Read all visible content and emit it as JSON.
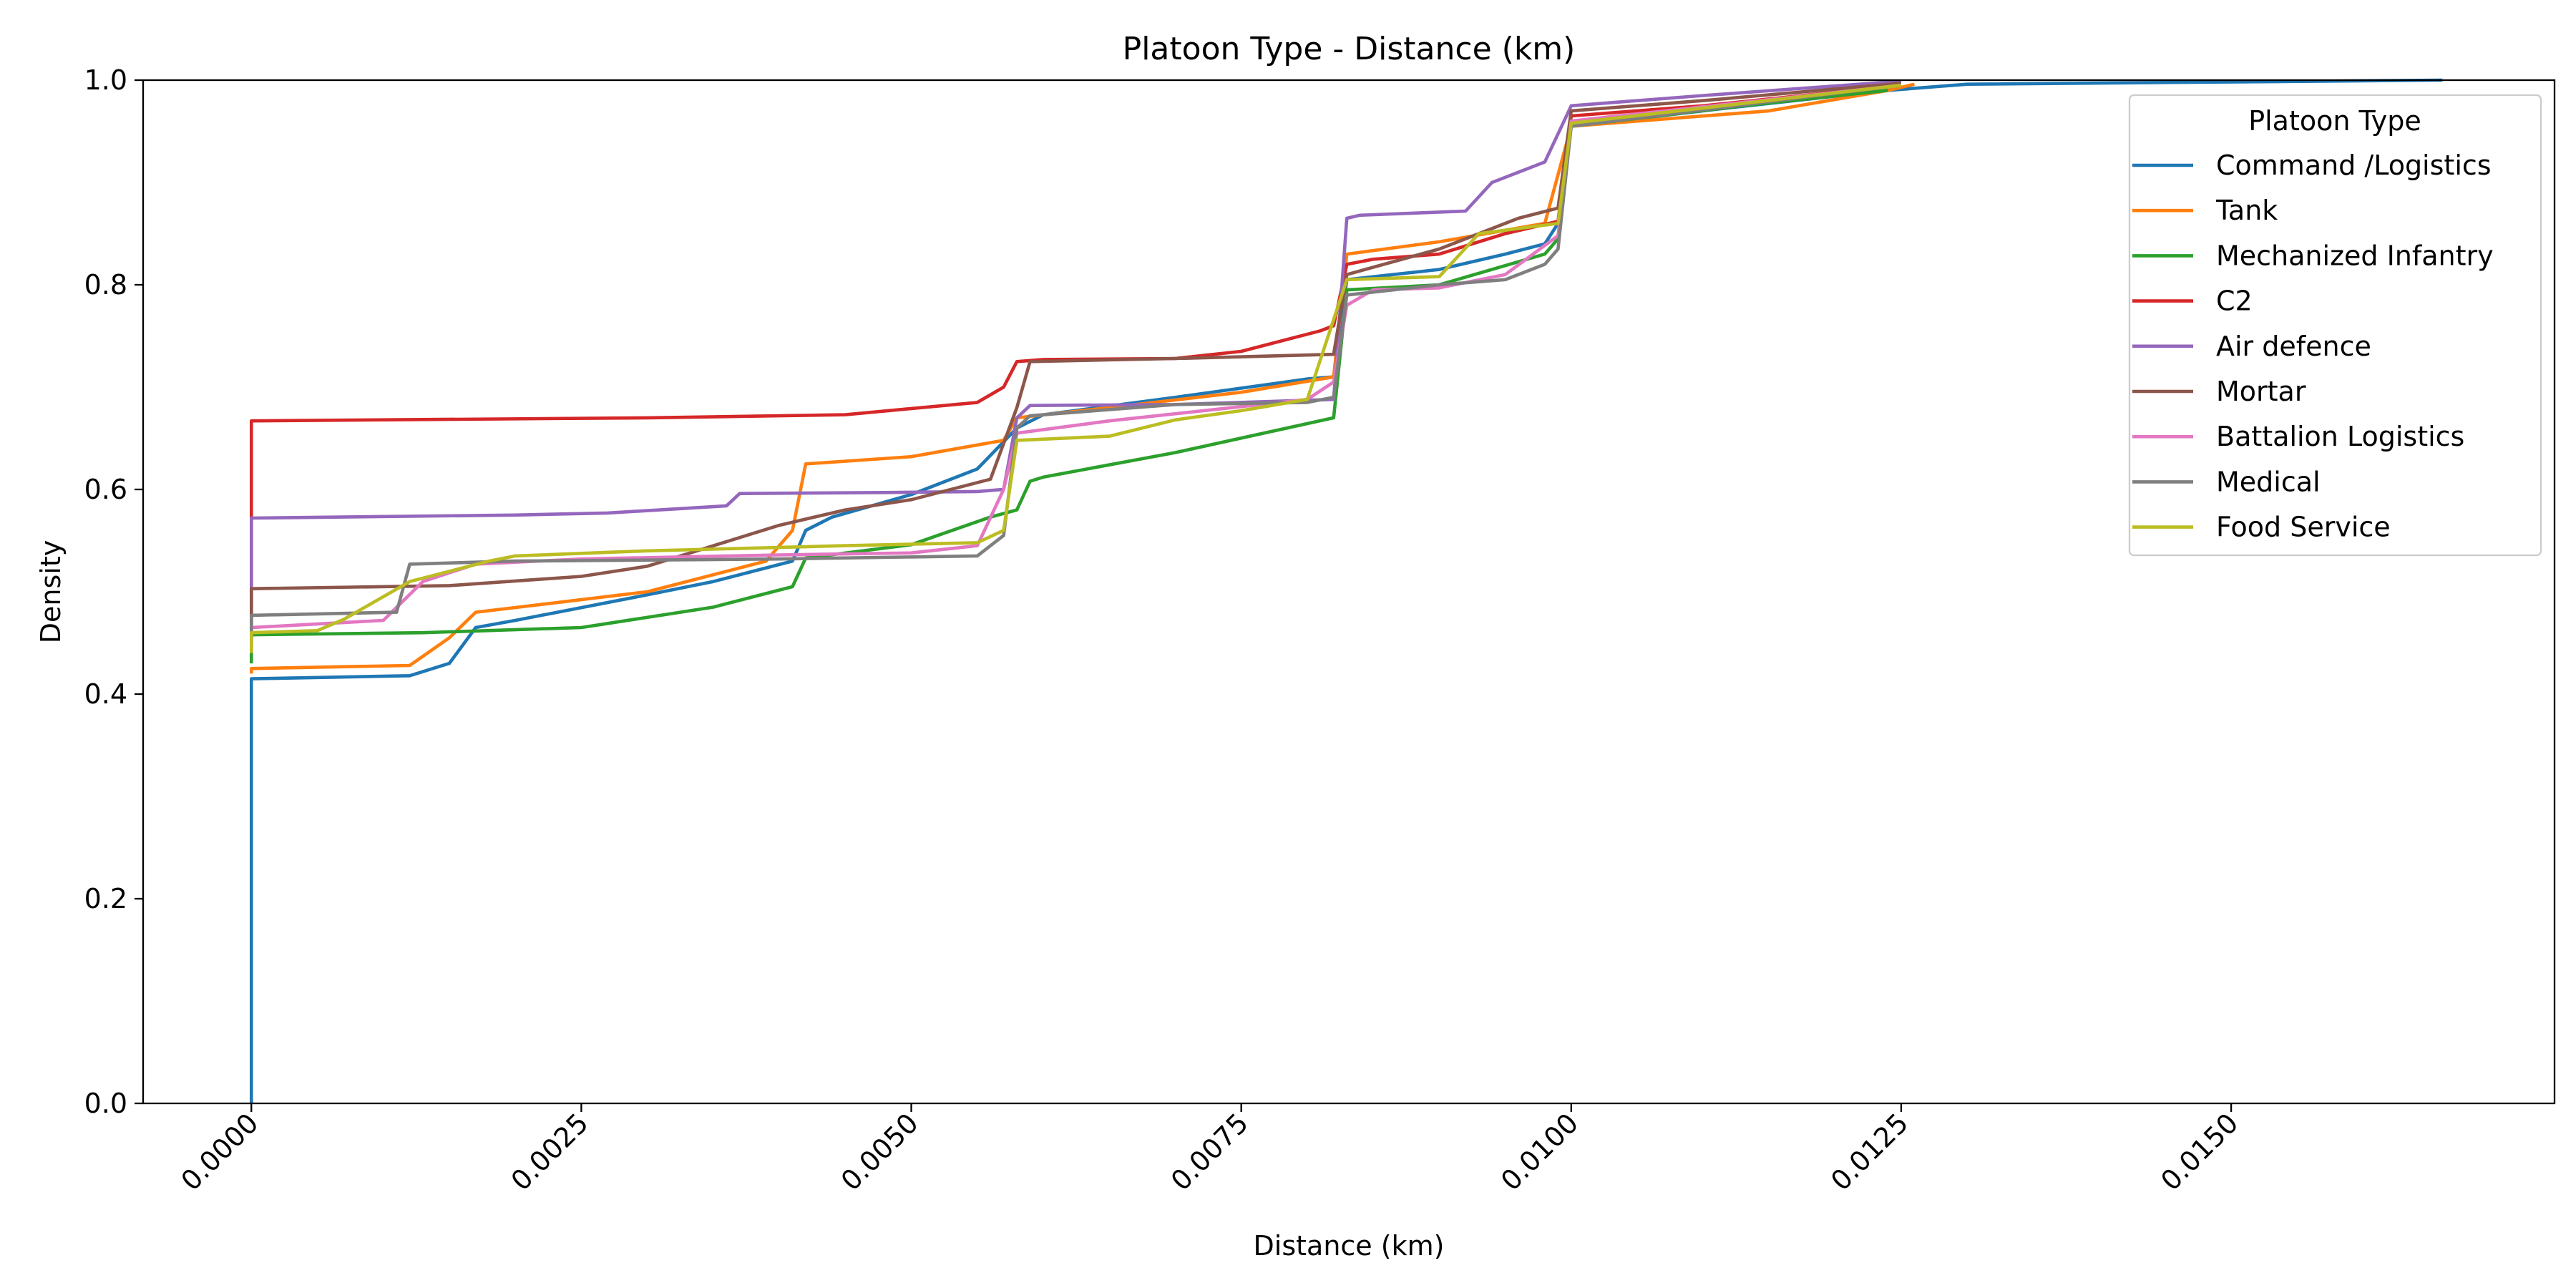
{
  "chart_data": {
    "type": "line",
    "title": "Platoon Type - Distance (km)",
    "xlabel": "Distance (km)",
    "ylabel": "Density",
    "xlim": [
      -0.00082,
      0.01745
    ],
    "ylim": [
      0.0,
      1.0
    ],
    "xticks": [
      0.0,
      0.0025,
      0.005,
      0.0075,
      0.01,
      0.0125,
      0.015
    ],
    "xtick_labels": [
      "0.0000",
      "0.0025",
      "0.0050",
      "0.0075",
      "0.0100",
      "0.0125",
      "0.0150"
    ],
    "yticks": [
      0.0,
      0.2,
      0.4,
      0.6,
      0.8,
      1.0
    ],
    "ytick_labels": [
      "0.0",
      "0.2",
      "0.4",
      "0.6",
      "0.8",
      "1.0"
    ],
    "grid": false,
    "legend": {
      "title": "Platoon Type",
      "placement": "top-right"
    },
    "series": [
      {
        "name": "Command /Logistics",
        "color": "#1f77b4",
        "points": [
          [
            0.0,
            0.0
          ],
          [
            0.0,
            0.415
          ],
          [
            0.0012,
            0.418
          ],
          [
            0.0015,
            0.43
          ],
          [
            0.0017,
            0.465
          ],
          [
            0.002,
            0.472
          ],
          [
            0.003,
            0.497
          ],
          [
            0.0035,
            0.51
          ],
          [
            0.0041,
            0.53
          ],
          [
            0.0042,
            0.56
          ],
          [
            0.0044,
            0.573
          ],
          [
            0.005,
            0.595
          ],
          [
            0.0055,
            0.62
          ],
          [
            0.0058,
            0.66
          ],
          [
            0.006,
            0.673
          ],
          [
            0.007,
            0.69
          ],
          [
            0.008,
            0.708
          ],
          [
            0.0082,
            0.71
          ],
          [
            0.0083,
            0.805
          ],
          [
            0.009,
            0.815
          ],
          [
            0.0095,
            0.83
          ],
          [
            0.0098,
            0.84
          ],
          [
            0.0099,
            0.86
          ],
          [
            0.01,
            0.955
          ],
          [
            0.0112,
            0.973
          ],
          [
            0.0124,
            0.99
          ],
          [
            0.013,
            0.996
          ],
          [
            0.0166,
            1.0
          ]
        ]
      },
      {
        "name": "Tank",
        "color": "#ff7f0e",
        "points": [
          [
            0.0,
            0.42
          ],
          [
            0.0,
            0.425
          ],
          [
            0.0012,
            0.428
          ],
          [
            0.0015,
            0.455
          ],
          [
            0.0017,
            0.48
          ],
          [
            0.003,
            0.5
          ],
          [
            0.0039,
            0.53
          ],
          [
            0.0041,
            0.56
          ],
          [
            0.0042,
            0.625
          ],
          [
            0.005,
            0.632
          ],
          [
            0.0057,
            0.648
          ],
          [
            0.0058,
            0.67
          ],
          [
            0.0065,
            0.68
          ],
          [
            0.0075,
            0.695
          ],
          [
            0.0082,
            0.71
          ],
          [
            0.0083,
            0.83
          ],
          [
            0.009,
            0.842
          ],
          [
            0.0098,
            0.86
          ],
          [
            0.01,
            0.955
          ],
          [
            0.0115,
            0.97
          ],
          [
            0.0124,
            0.99
          ],
          [
            0.0126,
            0.996
          ]
        ]
      },
      {
        "name": "Mechanized Infantry",
        "color": "#2ca02c",
        "points": [
          [
            0.0,
            0.43
          ],
          [
            0.0,
            0.458
          ],
          [
            0.0013,
            0.46
          ],
          [
            0.0025,
            0.465
          ],
          [
            0.0035,
            0.485
          ],
          [
            0.0041,
            0.505
          ],
          [
            0.0042,
            0.533
          ],
          [
            0.005,
            0.546
          ],
          [
            0.0056,
            0.573
          ],
          [
            0.0058,
            0.58
          ],
          [
            0.0059,
            0.608
          ],
          [
            0.006,
            0.612
          ],
          [
            0.007,
            0.636
          ],
          [
            0.0082,
            0.67
          ],
          [
            0.0083,
            0.795
          ],
          [
            0.009,
            0.8
          ],
          [
            0.0098,
            0.83
          ],
          [
            0.0099,
            0.845
          ],
          [
            0.01,
            0.955
          ],
          [
            0.0113,
            0.975
          ],
          [
            0.0124,
            0.99
          ]
        ]
      },
      {
        "name": "C2",
        "color": "#d62728",
        "points": [
          [
            0.0,
            0.44
          ],
          [
            0.0,
            0.667
          ],
          [
            0.003,
            0.67
          ],
          [
            0.0045,
            0.673
          ],
          [
            0.0055,
            0.685
          ],
          [
            0.0057,
            0.7
          ],
          [
            0.0058,
            0.725
          ],
          [
            0.006,
            0.727
          ],
          [
            0.007,
            0.728
          ],
          [
            0.0075,
            0.735
          ],
          [
            0.0081,
            0.755
          ],
          [
            0.0082,
            0.76
          ],
          [
            0.0083,
            0.82
          ],
          [
            0.0085,
            0.825
          ],
          [
            0.009,
            0.83
          ],
          [
            0.0095,
            0.85
          ],
          [
            0.0099,
            0.862
          ],
          [
            0.01,
            0.965
          ],
          [
            0.011,
            0.975
          ],
          [
            0.0125,
            0.995
          ]
        ]
      },
      {
        "name": "Air defence",
        "color": "#9467bd",
        "points": [
          [
            0.0,
            0.46
          ],
          [
            0.0,
            0.572
          ],
          [
            0.002,
            0.575
          ],
          [
            0.0027,
            0.577
          ],
          [
            0.0036,
            0.584
          ],
          [
            0.0037,
            0.596
          ],
          [
            0.0048,
            0.597
          ],
          [
            0.0055,
            0.598
          ],
          [
            0.0057,
            0.6
          ],
          [
            0.0058,
            0.67
          ],
          [
            0.0059,
            0.682
          ],
          [
            0.007,
            0.683
          ],
          [
            0.0082,
            0.688
          ],
          [
            0.0083,
            0.865
          ],
          [
            0.0084,
            0.868
          ],
          [
            0.0092,
            0.872
          ],
          [
            0.0094,
            0.9
          ],
          [
            0.0098,
            0.92
          ],
          [
            0.01,
            0.975
          ],
          [
            0.011,
            0.985
          ],
          [
            0.0125,
            0.999
          ]
        ]
      },
      {
        "name": "Mortar",
        "color": "#8c564b",
        "points": [
          [
            0.0,
            0.45
          ],
          [
            0.0,
            0.503
          ],
          [
            0.0015,
            0.506
          ],
          [
            0.0025,
            0.515
          ],
          [
            0.003,
            0.525
          ],
          [
            0.004,
            0.565
          ],
          [
            0.0045,
            0.58
          ],
          [
            0.005,
            0.59
          ],
          [
            0.0056,
            0.61
          ],
          [
            0.0058,
            0.68
          ],
          [
            0.0059,
            0.725
          ],
          [
            0.007,
            0.728
          ],
          [
            0.0082,
            0.732
          ],
          [
            0.0083,
            0.81
          ],
          [
            0.009,
            0.835
          ],
          [
            0.0096,
            0.865
          ],
          [
            0.0099,
            0.875
          ],
          [
            0.01,
            0.97
          ],
          [
            0.011,
            0.98
          ],
          [
            0.0125,
            0.997
          ]
        ]
      },
      {
        "name": "Battalion Logistics",
        "color": "#e377c2",
        "points": [
          [
            0.0,
            0.45
          ],
          [
            0.0,
            0.465
          ],
          [
            0.001,
            0.472
          ],
          [
            0.0013,
            0.51
          ],
          [
            0.0017,
            0.527
          ],
          [
            0.0025,
            0.532
          ],
          [
            0.004,
            0.536
          ],
          [
            0.005,
            0.538
          ],
          [
            0.0055,
            0.545
          ],
          [
            0.0057,
            0.6
          ],
          [
            0.0058,
            0.655
          ],
          [
            0.0065,
            0.667
          ],
          [
            0.008,
            0.688
          ],
          [
            0.0082,
            0.705
          ],
          [
            0.0083,
            0.78
          ],
          [
            0.0085,
            0.795
          ],
          [
            0.009,
            0.797
          ],
          [
            0.0095,
            0.81
          ],
          [
            0.0099,
            0.848
          ],
          [
            0.01,
            0.96
          ],
          [
            0.0125,
            0.995
          ]
        ]
      },
      {
        "name": "Medical",
        "color": "#7f7f7f",
        "points": [
          [
            0.0,
            0.455
          ],
          [
            0.0,
            0.477
          ],
          [
            0.0011,
            0.48
          ],
          [
            0.0012,
            0.527
          ],
          [
            0.002,
            0.53
          ],
          [
            0.004,
            0.532
          ],
          [
            0.0055,
            0.535
          ],
          [
            0.0057,
            0.555
          ],
          [
            0.0058,
            0.66
          ],
          [
            0.0059,
            0.672
          ],
          [
            0.007,
            0.683
          ],
          [
            0.008,
            0.685
          ],
          [
            0.0082,
            0.69
          ],
          [
            0.0083,
            0.79
          ],
          [
            0.009,
            0.8
          ],
          [
            0.0095,
            0.805
          ],
          [
            0.0098,
            0.82
          ],
          [
            0.0099,
            0.835
          ],
          [
            0.01,
            0.955
          ],
          [
            0.0125,
            0.995
          ]
        ]
      },
      {
        "name": "Food Service",
        "color": "#bcbd22",
        "points": [
          [
            0.0,
            0.44
          ],
          [
            0.0,
            0.46
          ],
          [
            0.0005,
            0.462
          ],
          [
            0.0007,
            0.473
          ],
          [
            0.0012,
            0.51
          ],
          [
            0.0018,
            0.53
          ],
          [
            0.002,
            0.535
          ],
          [
            0.003,
            0.54
          ],
          [
            0.0045,
            0.545
          ],
          [
            0.0055,
            0.548
          ],
          [
            0.0057,
            0.56
          ],
          [
            0.0058,
            0.648
          ],
          [
            0.0065,
            0.652
          ],
          [
            0.007,
            0.668
          ],
          [
            0.0075,
            0.677
          ],
          [
            0.008,
            0.688
          ],
          [
            0.0083,
            0.805
          ],
          [
            0.009,
            0.808
          ],
          [
            0.0093,
            0.85
          ],
          [
            0.0099,
            0.86
          ],
          [
            0.01,
            0.958
          ],
          [
            0.0125,
            0.995
          ]
        ]
      }
    ]
  }
}
